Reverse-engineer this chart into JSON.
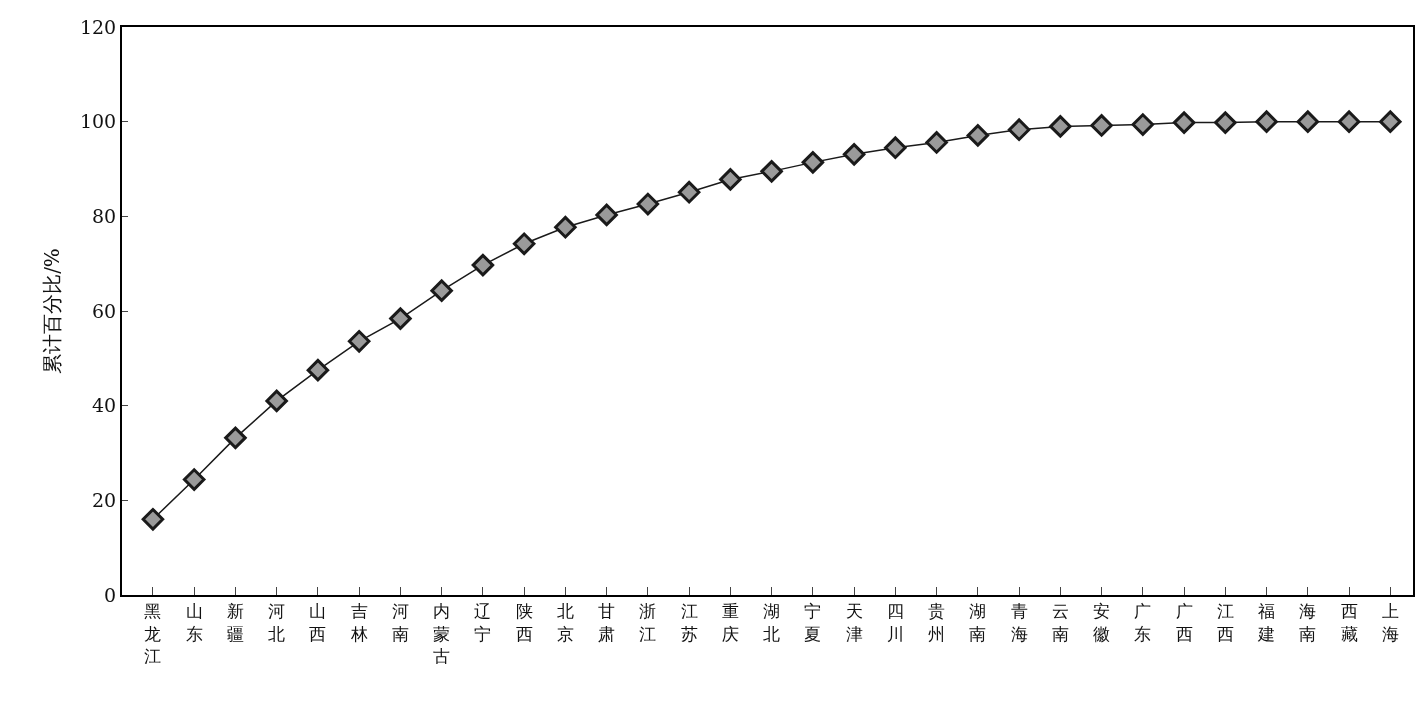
{
  "chart_data": {
    "type": "line",
    "ylabel": "累计百分比/%",
    "categories": [
      "黑龙江",
      "山东",
      "新疆",
      "河北",
      "山西",
      "吉林",
      "河南",
      "内蒙古",
      "辽宁",
      "陕西",
      "北京",
      "甘肃",
      "浙江",
      "江苏",
      "重庆",
      "湖北",
      "宁夏",
      "天津",
      "四川",
      "贵州",
      "湖南",
      "青海",
      "云南",
      "安徽",
      "广东",
      "广西",
      "江西",
      "福建",
      "海南",
      "西藏",
      "上海"
    ],
    "series": [
      {
        "color": "#1a1a1a",
        "values": [
          16.0,
          24.4,
          33.2,
          41.0,
          47.5,
          53.6,
          58.4,
          64.3,
          69.7,
          74.2,
          77.7,
          80.3,
          82.6,
          85.1,
          87.8,
          89.5,
          91.4,
          93.1,
          94.5,
          95.6,
          97.1,
          98.3,
          99.0,
          99.2,
          99.4,
          99.8,
          99.8,
          100,
          100,
          100,
          100
        ]
      }
    ],
    "ylim": [
      0,
      120
    ],
    "yticks": [
      0,
      20,
      40,
      60,
      80,
      100,
      120
    ],
    "marker": "diamond",
    "line_style": "solid"
  }
}
